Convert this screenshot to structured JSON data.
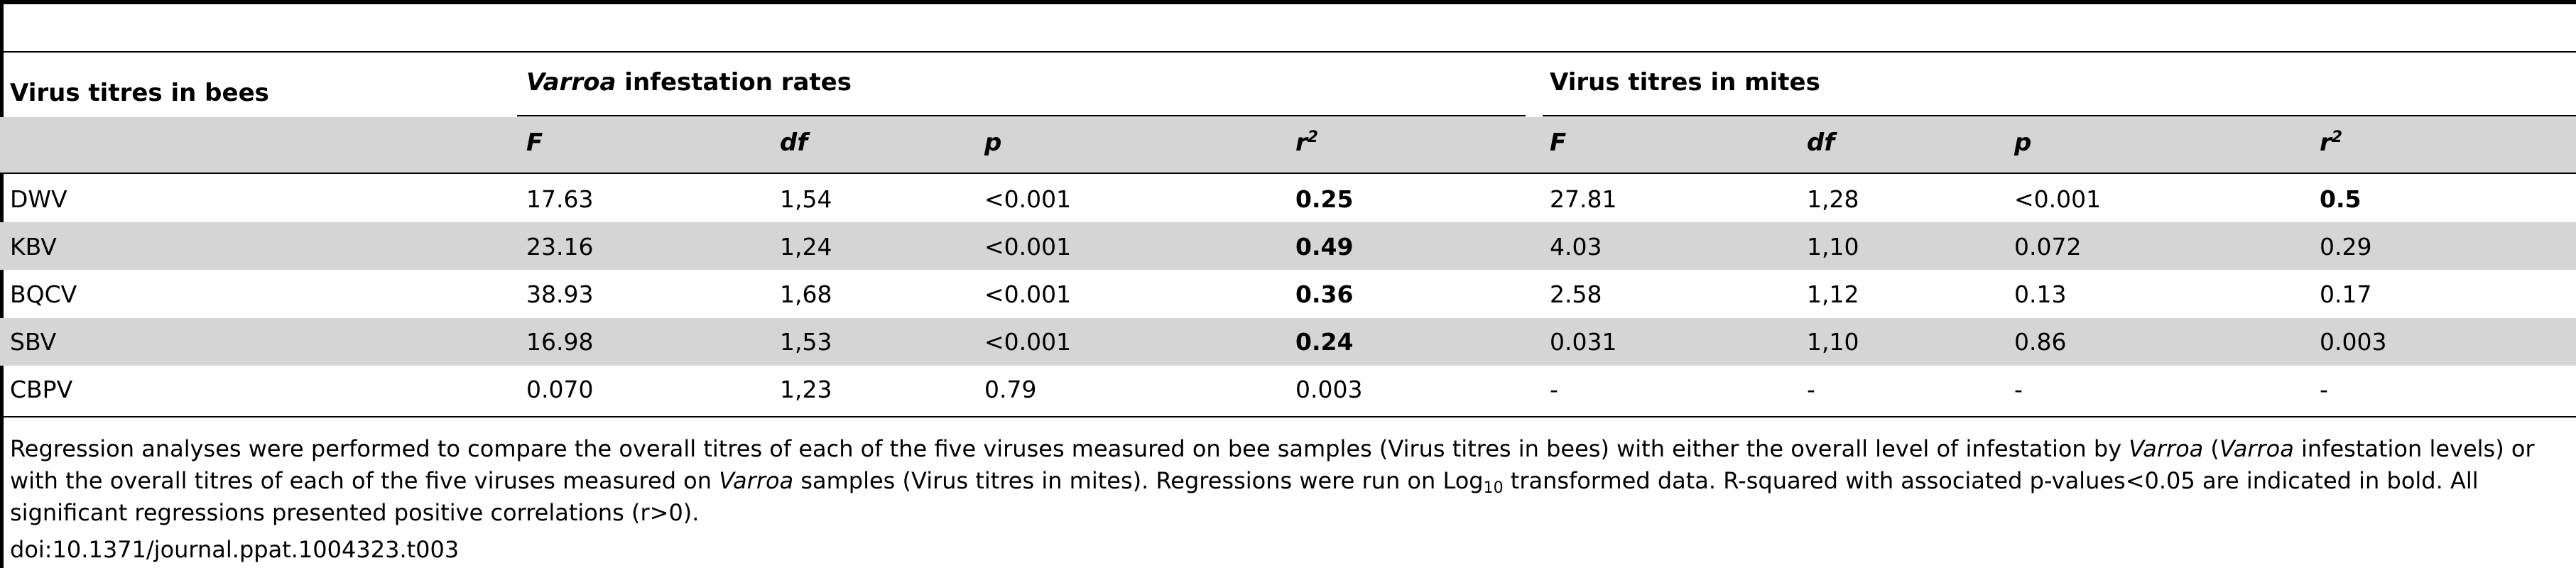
{
  "table": {
    "col_head_left": "Virus titres in bees",
    "group1": {
      "lead_italic": "Varroa",
      "rest": " infestation rates"
    },
    "group2": "Virus titres in mites",
    "sub_headers": {
      "F": "F",
      "df": "df",
      "p": "p",
      "r": "r",
      "r_sup": "2"
    },
    "rows": [
      {
        "virus": "DWV",
        "F1": "17.63",
        "df1": "1,54",
        "p1": "<0.001",
        "r1": "0.25",
        "r1_bold": true,
        "F2": "27.81",
        "df2": "1,28",
        "p2": "<0.001",
        "r2": "0.5",
        "r2_bold": true
      },
      {
        "virus": "KBV",
        "F1": "23.16",
        "df1": "1,24",
        "p1": "<0.001",
        "r1": "0.49",
        "r1_bold": true,
        "F2": "4.03",
        "df2": "1,10",
        "p2": "0.072",
        "r2": "0.29",
        "r2_bold": false
      },
      {
        "virus": "BQCV",
        "F1": "38.93",
        "df1": "1,68",
        "p1": "<0.001",
        "r1": "0.36",
        "r1_bold": true,
        "F2": "2.58",
        "df2": "1,12",
        "p2": "0.13",
        "r2": "0.17",
        "r2_bold": false
      },
      {
        "virus": "SBV",
        "F1": "16.98",
        "df1": "1,53",
        "p1": "<0.001",
        "r1": "0.24",
        "r1_bold": true,
        "F2": "0.031",
        "df2": "1,10",
        "p2": "0.86",
        "r2": "0.003",
        "r2_bold": false
      },
      {
        "virus": "CBPV",
        "F1": "0.070",
        "df1": "1,23",
        "p1": "0.79",
        "r1": "0.003",
        "r1_bold": false,
        "F2": "-",
        "df2": "-",
        "p2": "-",
        "r2": "-",
        "r2_bold": false
      }
    ]
  },
  "footnote": {
    "s1": "Regression analyses were performed to compare the overall titres of each of the five viruses measured on bee samples (Virus titres in bees) with either the overall level of infestation by ",
    "i1": "Varroa",
    "s2": " (",
    "i2": "Varroa",
    "s3": " infestation levels) or with the overall titres of each of the five viruses measured on ",
    "i3": "Varroa",
    "s4": " samples (Virus titres in mites). Regressions were run on Log",
    "sub": "10",
    "s5": " transformed data. R-squared with associated p-values<0.05 are indicated in bold. All significant regressions presented positive correlations (r>0)."
  },
  "doi": "doi:10.1371/journal.ppat.1004323.t003"
}
